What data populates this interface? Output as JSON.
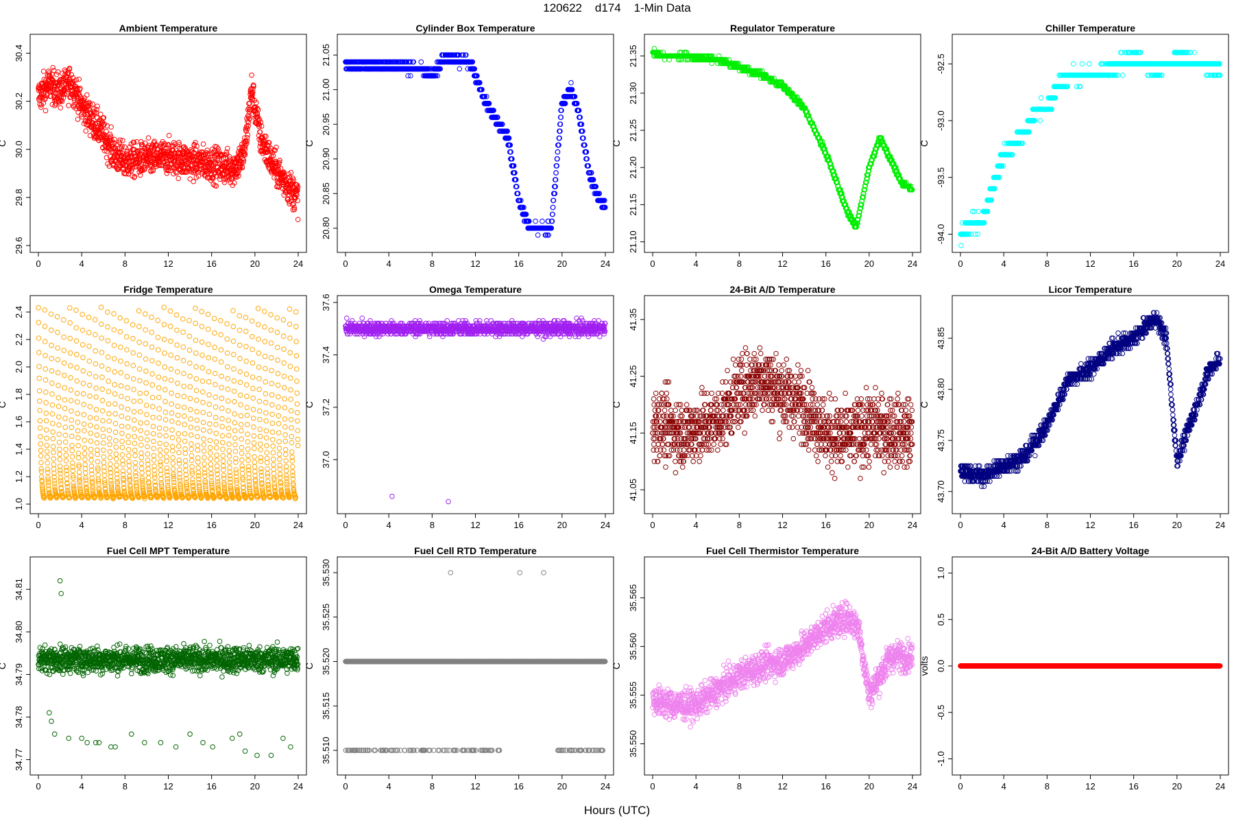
{
  "figure": {
    "title": "120622    d174    1-Min Data",
    "xlabel": "Hours (UTC)"
  },
  "chart_data": [
    {
      "type": "scatter",
      "title": "Ambient Temperature",
      "ylabel": "C",
      "color": "#ff0000",
      "xlim": [
        0,
        24
      ],
      "ylim": [
        29.6,
        30.45
      ],
      "xticks": [
        0,
        4,
        8,
        12,
        16,
        20,
        24
      ],
      "yticks": [
        29.6,
        29.8,
        30.0,
        30.2,
        30.4
      ],
      "ytick_labels": [
        "29.6",
        "29.8",
        "30.0",
        "30.2",
        "30.4"
      ],
      "trend_x": [
        0,
        1,
        2,
        3,
        4,
        5,
        6,
        7,
        8,
        10,
        12,
        14,
        16,
        18,
        19,
        19.7,
        20.5,
        21.5,
        22.5,
        24
      ],
      "trend_y": [
        30.22,
        30.27,
        30.24,
        30.28,
        30.18,
        30.12,
        30.06,
        29.98,
        29.95,
        29.96,
        29.97,
        29.95,
        29.94,
        29.92,
        29.98,
        30.25,
        30.05,
        29.95,
        29.88,
        29.8
      ],
      "noise": 0.07,
      "step": 0
    },
    {
      "type": "scatter",
      "title": "Cylinder Box Temperature",
      "ylabel": "C",
      "color": "#0000ff",
      "xlim": [
        0,
        24
      ],
      "ylim": [
        20.775,
        21.07
      ],
      "xticks": [
        0,
        4,
        8,
        12,
        16,
        20,
        24
      ],
      "yticks": [
        20.8,
        20.85,
        20.9,
        20.95,
        21.0,
        21.05
      ],
      "ytick_labels": [
        "20.80",
        "20.85",
        "20.90",
        "20.95",
        "21.00",
        "21.05"
      ],
      "trend_x": [
        0,
        4,
        7,
        8,
        9,
        11.5,
        13,
        15,
        16,
        17,
        18,
        19,
        20,
        20.8,
        21.5,
        22.5,
        23.5,
        24
      ],
      "trend_y": [
        21.035,
        21.035,
        21.03,
        21.02,
        21.045,
        21.04,
        20.98,
        20.93,
        20.84,
        20.8,
        20.8,
        20.8,
        20.98,
        21.0,
        20.97,
        20.88,
        20.84,
        20.83
      ],
      "noise": 0.006,
      "step": 0.01
    },
    {
      "type": "scatter",
      "title": "Regulator Temperature",
      "ylabel": "C",
      "color": "#00ee00",
      "xlim": [
        0,
        24
      ],
      "ylim": [
        21.095,
        21.37
      ],
      "xticks": [
        0,
        4,
        8,
        12,
        16,
        20,
        24
      ],
      "yticks": [
        21.1,
        21.15,
        21.2,
        21.25,
        21.3,
        21.35
      ],
      "ytick_labels": [
        "21.10",
        "21.15",
        "21.20",
        "21.25",
        "21.30",
        "21.35"
      ],
      "trend_x": [
        0,
        1,
        3,
        6,
        8,
        10,
        12,
        14,
        16,
        17,
        18,
        18.8,
        20,
        21,
        22,
        23,
        24
      ],
      "trend_y": [
        21.355,
        21.35,
        21.35,
        21.345,
        21.335,
        21.325,
        21.31,
        21.28,
        21.22,
        21.18,
        21.14,
        21.12,
        21.2,
        21.24,
        21.21,
        21.18,
        21.17
      ],
      "noise": 0.003,
      "step": 0.005
    },
    {
      "type": "scatter",
      "title": "Chiller Temperature",
      "ylabel": "C",
      "color": "#00ffff",
      "xlim": [
        0,
        24
      ],
      "ylim": [
        -94.1,
        -92.3
      ],
      "xticks": [
        0,
        4,
        8,
        12,
        16,
        20,
        24
      ],
      "yticks": [
        -94.0,
        -93.5,
        -93.0,
        -92.5
      ],
      "ytick_labels": [
        "-94.0",
        "-93.5",
        "-93.0",
        "-92.5"
      ],
      "trend_x": [
        0,
        1,
        2,
        3,
        4,
        5,
        6,
        7,
        8,
        9,
        10,
        12,
        14,
        16,
        18,
        20,
        22,
        24
      ],
      "trend_y": [
        -94.0,
        -93.9,
        -93.9,
        -93.6,
        -93.3,
        -93.2,
        -93.1,
        -92.9,
        -92.9,
        -92.7,
        -92.6,
        -92.6,
        -92.55,
        -92.45,
        -92.55,
        -92.45,
        -92.5,
        -92.55
      ],
      "noise": 0.05,
      "step": 0.1
    },
    {
      "type": "scatter",
      "title": "Fridge Temperature",
      "ylabel": "C",
      "color": "#ffa500",
      "xlim": [
        0,
        24
      ],
      "ylim": [
        0.98,
        2.47
      ],
      "xticks": [
        0,
        4,
        8,
        12,
        16,
        20,
        24
      ],
      "yticks": [
        1.0,
        1.2,
        1.4,
        1.6,
        1.8,
        2.0,
        2.2,
        2.4
      ],
      "ytick_labels": [
        "1.0",
        "1.2",
        "1.4",
        "1.6",
        "1.8",
        "2.0",
        "2.2",
        "2.4"
      ],
      "cycle_hours": 0.58,
      "cycle_min": 1.05,
      "cycle_max": 2.43,
      "cycle_shape": "sawtooth"
    },
    {
      "type": "scatter",
      "title": "Omega Temperature",
      "ylabel": "C",
      "color": "#a020f0",
      "xlim": [
        0,
        24
      ],
      "ylim": [
        36.82,
        37.6
      ],
      "xticks": [
        0,
        4,
        8,
        12,
        16,
        20,
        24
      ],
      "yticks": [
        37.0,
        37.2,
        37.4,
        37.6
      ],
      "ytick_labels": [
        "37.0",
        "37.2",
        "37.4",
        "37.6"
      ],
      "trend_x": [
        0,
        24
      ],
      "trend_y": [
        37.5,
        37.5
      ],
      "noise": 0.025,
      "step": 0.01,
      "outliers": [
        [
          4.3,
          36.86
        ],
        [
          9.5,
          36.84
        ]
      ]
    },
    {
      "type": "scatter",
      "title": "24-Bit A/D Temperature",
      "ylabel": "C",
      "color": "#8b0000",
      "xlim": [
        0,
        24
      ],
      "ylim": [
        41.02,
        41.38
      ],
      "xticks": [
        0,
        4,
        8,
        12,
        16,
        20,
        24
      ],
      "yticks": [
        41.05,
        41.15,
        41.25,
        41.35
      ],
      "ytick_labels": [
        "41.05",
        "41.15",
        "41.25",
        "41.35"
      ],
      "trend_x": [
        0,
        3,
        6,
        8,
        10,
        12,
        14,
        16,
        18,
        20,
        24
      ],
      "trend_y": [
        41.17,
        41.15,
        41.17,
        41.22,
        41.25,
        41.22,
        41.2,
        41.15,
        41.14,
        41.16,
        41.15
      ],
      "noise": 0.06,
      "step": 0.01
    },
    {
      "type": "scatter",
      "title": "Licor Temperature",
      "ylabel": "C",
      "color": "#000080",
      "xlim": [
        0,
        24
      ],
      "ylim": [
        43.685,
        43.885
      ],
      "xticks": [
        0,
        4,
        8,
        12,
        16,
        20,
        24
      ],
      "yticks": [
        43.7,
        43.75,
        43.8,
        43.85
      ],
      "ytick_labels": [
        "43.70",
        "43.75",
        "43.80",
        "43.85"
      ],
      "trend_x": [
        0,
        2,
        4,
        6,
        8,
        10,
        12,
        14,
        16,
        18,
        19,
        20,
        21,
        22,
        23,
        24
      ],
      "trend_y": [
        43.72,
        43.715,
        43.725,
        43.735,
        43.765,
        43.81,
        43.82,
        43.84,
        43.85,
        43.87,
        43.85,
        43.73,
        43.76,
        43.79,
        43.82,
        43.83
      ],
      "noise": 0.008,
      "step": 0.005
    },
    {
      "type": "scatter",
      "title": "Fuel Cell MPT Temperature",
      "ylabel": "C",
      "color": "#006400",
      "xlim": [
        0,
        24
      ],
      "ylim": [
        34.768,
        34.816
      ],
      "xticks": [
        0,
        4,
        8,
        12,
        16,
        20,
        24
      ],
      "yticks": [
        34.77,
        34.78,
        34.79,
        34.8,
        34.81
      ],
      "ytick_labels": [
        "34.77",
        "34.78",
        "34.79",
        "34.80",
        "34.81"
      ],
      "trend_x": [
        0,
        24
      ],
      "trend_y": [
        34.7935,
        34.7935
      ],
      "noise": 0.003,
      "step": 0,
      "outliers": [
        [
          2.0,
          34.812
        ],
        [
          2.1,
          34.809
        ],
        [
          1.0,
          34.781
        ],
        [
          1.2,
          34.779
        ],
        [
          1.5,
          34.776
        ],
        [
          2.8,
          34.775
        ],
        [
          4.0,
          34.775
        ],
        [
          4.5,
          34.774
        ],
        [
          5.3,
          34.774
        ],
        [
          5.6,
          34.774
        ],
        [
          6.7,
          34.773
        ],
        [
          7.1,
          34.773
        ],
        [
          8.6,
          34.776
        ],
        [
          9.8,
          34.774
        ],
        [
          11.3,
          34.774
        ],
        [
          12.7,
          34.773
        ],
        [
          14.0,
          34.776
        ],
        [
          15.2,
          34.774
        ],
        [
          16.1,
          34.773
        ],
        [
          17.9,
          34.775
        ],
        [
          18.6,
          34.776
        ],
        [
          19.1,
          34.772
        ],
        [
          20.2,
          34.771
        ],
        [
          21.5,
          34.771
        ],
        [
          22.6,
          34.775
        ],
        [
          23.3,
          34.773
        ]
      ]
    },
    {
      "type": "scatter",
      "title": "Fuel Cell RTD Temperature",
      "ylabel": "C",
      "color": "#808080",
      "xlim": [
        0,
        24
      ],
      "ylim": [
        35.508,
        35.531
      ],
      "xticks": [
        0,
        4,
        8,
        12,
        16,
        20,
        24
      ],
      "yticks": [
        35.51,
        35.515,
        35.52,
        35.525,
        35.53
      ],
      "ytick_labels": [
        "35.510",
        "35.515",
        "35.520",
        "35.525",
        "35.530"
      ],
      "levels": [
        35.51,
        35.52
      ],
      "main_level": 35.52,
      "outliers": [
        [
          9.7,
          35.53
        ],
        [
          16.1,
          35.53
        ],
        [
          18.3,
          35.53
        ]
      ]
    },
    {
      "type": "scatter",
      "title": "Fuel Cell Thermistor Temperature",
      "ylabel": "C",
      "color": "#ee82ee",
      "xlim": [
        0,
        24
      ],
      "ylim": [
        35.5475,
        35.5685
      ],
      "xticks": [
        0,
        4,
        8,
        12,
        16,
        20,
        24
      ],
      "yticks": [
        35.55,
        35.555,
        35.56,
        35.565
      ],
      "ytick_labels": [
        "35.550",
        "35.555",
        "35.560",
        "35.565"
      ],
      "trend_x": [
        0,
        2,
        4,
        6,
        8,
        10,
        12,
        14,
        16,
        18,
        19,
        20,
        21,
        22,
        24
      ],
      "trend_y": [
        35.5545,
        35.554,
        35.554,
        35.5555,
        35.557,
        35.558,
        35.5585,
        35.56,
        35.562,
        35.563,
        35.562,
        35.555,
        35.557,
        35.559,
        35.559
      ],
      "noise": 0.0015,
      "step": 0
    },
    {
      "type": "scatter",
      "title": "24-Bit A/D Battery Voltage",
      "ylabel": "volts",
      "color": "#ff0000",
      "xlim": [
        0,
        24
      ],
      "ylim": [
        -1.1,
        1.1
      ],
      "xticks": [
        0,
        4,
        8,
        12,
        16,
        20,
        24
      ],
      "yticks": [
        -1.0,
        -0.5,
        0.0,
        0.5,
        1.0
      ],
      "ytick_labels": [
        "-1.0",
        "-0.5",
        "0.0",
        "0.5",
        "1.0"
      ],
      "trend_x": [
        0,
        24
      ],
      "trend_y": [
        0,
        0
      ],
      "noise": 0,
      "step": 0
    }
  ]
}
